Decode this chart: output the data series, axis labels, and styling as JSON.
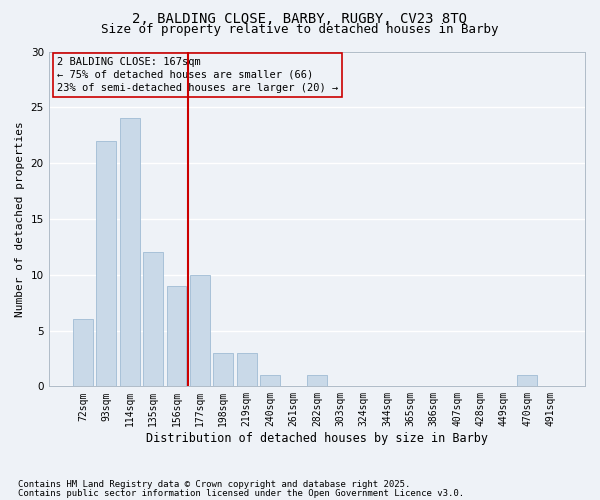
{
  "title1": "2, BALDING CLOSE, BARBY, RUGBY, CV23 8TQ",
  "title2": "Size of property relative to detached houses in Barby",
  "xlabel": "Distribution of detached houses by size in Barby",
  "ylabel": "Number of detached properties",
  "categories": [
    "72sqm",
    "93sqm",
    "114sqm",
    "135sqm",
    "156sqm",
    "177sqm",
    "198sqm",
    "219sqm",
    "240sqm",
    "261sqm",
    "282sqm",
    "303sqm",
    "324sqm",
    "344sqm",
    "365sqm",
    "386sqm",
    "407sqm",
    "428sqm",
    "449sqm",
    "470sqm",
    "491sqm"
  ],
  "values": [
    6,
    22,
    24,
    12,
    9,
    10,
    3,
    3,
    1,
    0,
    1,
    0,
    0,
    0,
    0,
    0,
    0,
    0,
    0,
    1,
    0
  ],
  "bar_color": "#c9d9e8",
  "bar_edgecolor": "#a0bcd4",
  "vline_color": "#cc0000",
  "vline_pos": 4.5,
  "annotation_text": "2 BALDING CLOSE: 167sqm\n← 75% of detached houses are smaller (66)\n23% of semi-detached houses are larger (20) →",
  "annotation_box_edgecolor": "#cc0000",
  "ylim": [
    0,
    30
  ],
  "yticks": [
    0,
    5,
    10,
    15,
    20,
    25,
    30
  ],
  "background_color": "#eef2f7",
  "grid_color": "#ffffff",
  "footer1": "Contains HM Land Registry data © Crown copyright and database right 2025.",
  "footer2": "Contains public sector information licensed under the Open Government Licence v3.0.",
  "title_fontsize": 10,
  "subtitle_fontsize": 9,
  "tick_fontsize": 7,
  "ylabel_fontsize": 8,
  "xlabel_fontsize": 8.5,
  "annotation_fontsize": 7.5,
  "footer_fontsize": 6.5
}
